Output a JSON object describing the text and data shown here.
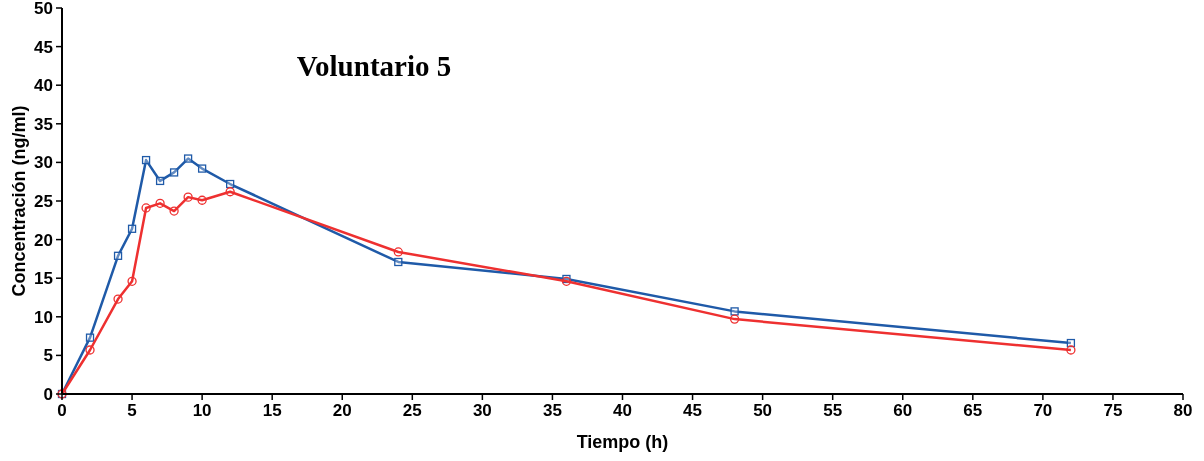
{
  "chart_data": {
    "type": "line",
    "title": "Voluntario 5",
    "xlabel": "Tiempo (h)",
    "ylabel": "Concentración  (ng/ml)",
    "x": [
      0,
      2,
      4,
      5,
      6,
      7,
      8,
      9,
      10,
      12,
      24,
      36,
      48,
      72
    ],
    "series": [
      {
        "color": "#1f5aa8",
        "marker": "square",
        "values": [
          0,
          7.3,
          17.9,
          21.4,
          30.3,
          27.6,
          28.7,
          30.5,
          29.2,
          27.2,
          17.1,
          14.9,
          10.7,
          6.6
        ]
      },
      {
        "color": "#ee3030",
        "marker": "circle",
        "values": [
          0,
          5.7,
          12.3,
          14.6,
          24.1,
          24.7,
          23.7,
          25.5,
          25.1,
          26.2,
          18.4,
          14.6,
          9.7,
          5.7
        ]
      }
    ],
    "xlim": [
      0,
      80
    ],
    "xticks": [
      0,
      5,
      10,
      15,
      20,
      25,
      30,
      35,
      40,
      45,
      50,
      55,
      60,
      65,
      70,
      75,
      80
    ],
    "ylim": [
      0,
      50
    ],
    "yticks": [
      0,
      5,
      10,
      15,
      20,
      25,
      30,
      35,
      40,
      45,
      50
    ],
    "grid": false,
    "line_style": "solid"
  }
}
